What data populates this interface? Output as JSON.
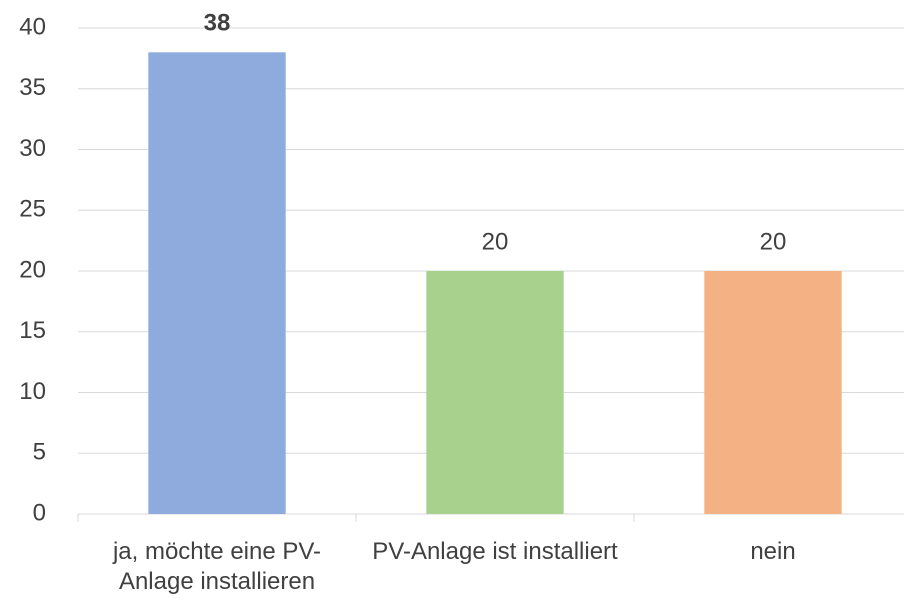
{
  "chart_data": {
    "type": "bar",
    "categories": [
      "ja, möchte eine PV-Anlage installieren",
      "PV-Anlage ist installiert",
      "nein"
    ],
    "values": [
      38,
      20,
      20
    ],
    "colors": [
      "#8faadc",
      "#a9d18e",
      "#f4b183"
    ],
    "ylim": [
      0,
      40
    ],
    "yticks": [
      0,
      5,
      10,
      15,
      20,
      25,
      30,
      35,
      40
    ],
    "grid": true
  }
}
